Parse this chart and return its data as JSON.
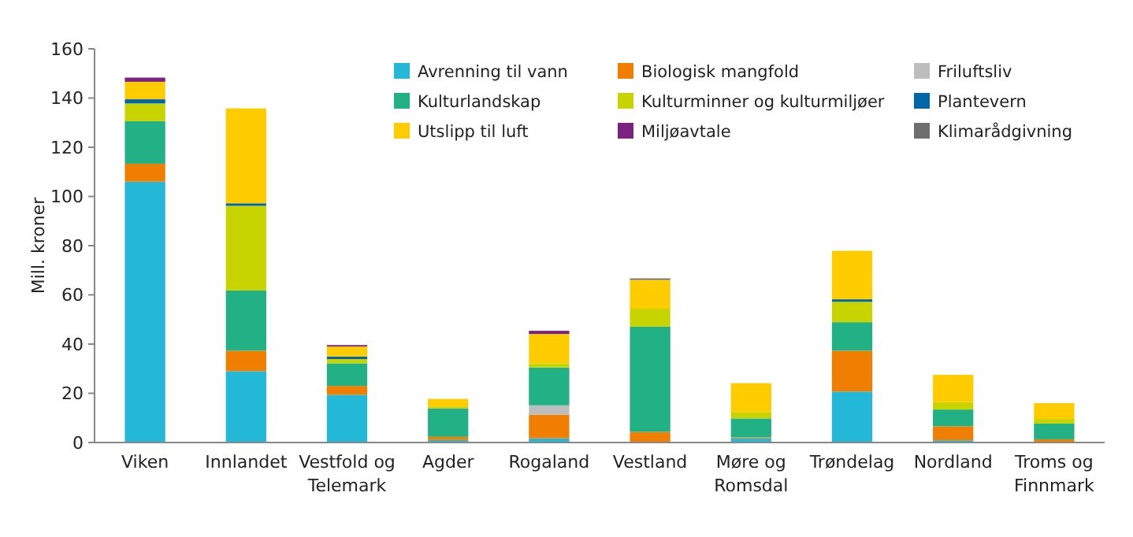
{
  "chart_data": {
    "type": "bar",
    "stacked": true,
    "ylabel": "Mill. kroner",
    "ylim": [
      0,
      160
    ],
    "yticks": [
      0,
      20,
      40,
      60,
      80,
      100,
      120,
      140,
      160
    ],
    "grid": false,
    "legend": "top right",
    "categories": [
      "Viken",
      "Innlandet",
      "Vestfold og Telemark",
      "Agder",
      "Rogaland",
      "Vestland",
      "Møre og Romsdal",
      "Trøndelag",
      "Nordland",
      "Troms og Finnmark"
    ],
    "series": [
      {
        "name": "Avrenning til vann",
        "color": "#24b8d8",
        "values": [
          106,
          29,
          19.4,
          1,
          1.7,
          0.3,
          1.7,
          20.7,
          0.9,
          0.3
        ]
      },
      {
        "name": "Biologisk mangfold",
        "color": "#f07e00",
        "values": [
          7.3,
          8.3,
          3.6,
          1.3,
          9.6,
          4,
          0.4,
          16.6,
          5.7,
          1
        ]
      },
      {
        "name": "Friluftsliv",
        "color": "#bdbdbd",
        "values": [
          0,
          0,
          0,
          0,
          3.8,
          0,
          0,
          0,
          0,
          0
        ]
      },
      {
        "name": "Kulturlandskap",
        "color": "#22b085",
        "values": [
          17.3,
          24.5,
          9.2,
          11.6,
          15.4,
          42.8,
          7.7,
          11.6,
          6.8,
          6.4
        ]
      },
      {
        "name": "Kulturminner og kulturmiljøer",
        "color": "#c8d400",
        "values": [
          7.2,
          34.4,
          1.7,
          0.5,
          1.7,
          7.3,
          2.6,
          8.3,
          3,
          1.9
        ]
      },
      {
        "name": "Plantevern",
        "color": "#0066a8",
        "values": [
          1.7,
          1,
          1,
          0,
          0,
          0,
          0,
          1,
          0,
          0
        ]
      },
      {
        "name": "Utslipp til luft",
        "color": "#ffcc00",
        "values": [
          7.1,
          38.6,
          4.1,
          3.3,
          11.9,
          11.7,
          11.7,
          19.7,
          11.1,
          6.4
        ]
      },
      {
        "name": "Miljøavtale",
        "color": "#7b2280",
        "values": [
          1.7,
          0,
          0.6,
          0,
          1.3,
          0,
          0,
          0,
          0,
          0
        ]
      },
      {
        "name": "Klimarådgivning",
        "color": "#6e6e6e",
        "values": [
          0,
          0,
          0,
          0,
          0,
          0.6,
          0,
          0,
          0,
          0
        ]
      }
    ]
  }
}
